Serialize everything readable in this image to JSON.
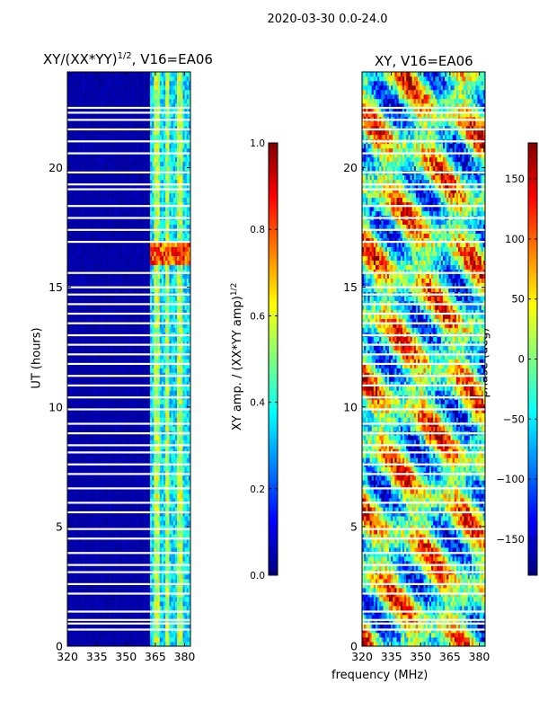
{
  "suptitle": "2020-03-30 0.0-24.0",
  "chart_data": [
    {
      "type": "heatmap",
      "title_main": "XY/(XX*YY)",
      "title_sup": "1/2",
      "title_rest": ", V16=EA06",
      "xlabel": "",
      "ylabel": "UT (hours)",
      "xlim": [
        320,
        383
      ],
      "ylim": [
        0,
        24
      ],
      "xticks": [
        "320",
        "335",
        "350",
        "365",
        "380"
      ],
      "xtick_values": [
        320,
        335,
        350,
        365,
        380
      ],
      "yticks": [
        "0",
        "5",
        "10",
        "15",
        "20"
      ],
      "ytick_values": [
        0,
        5,
        10,
        15,
        20
      ],
      "colorbar": {
        "label_main": "XY amp. / (XX*YY amp)",
        "label_sup": "1/2",
        "range": [
          0,
          1
        ],
        "ticks": [
          "0.0",
          "0.2",
          "0.4",
          "0.6",
          "0.8",
          "1.0"
        ],
        "tick_values": [
          0,
          0.2,
          0.4,
          0.6,
          0.8,
          1.0
        ],
        "colormap": "jet"
      }
    },
    {
      "type": "heatmap",
      "title": "XY, V16=EA06",
      "xlabel": "frequency (MHz)",
      "ylabel": "",
      "xlim": [
        320,
        383
      ],
      "ylim": [
        0,
        24
      ],
      "xticks": [
        "320",
        "335",
        "350",
        "365",
        "380"
      ],
      "xtick_values": [
        320,
        335,
        350,
        365,
        380
      ],
      "yticks": [
        "0",
        "5",
        "10",
        "15",
        "20"
      ],
      "ytick_values": [
        0,
        5,
        10,
        15,
        20
      ],
      "colorbar": {
        "label": "phase (deg)",
        "range": [
          -180,
          180
        ],
        "ticks": [
          "−150",
          "−100",
          "−50",
          "0",
          "50",
          "100",
          "150"
        ],
        "tick_values": [
          -150,
          -100,
          -50,
          0,
          50,
          100,
          150
        ],
        "colormap": "jet"
      }
    }
  ]
}
